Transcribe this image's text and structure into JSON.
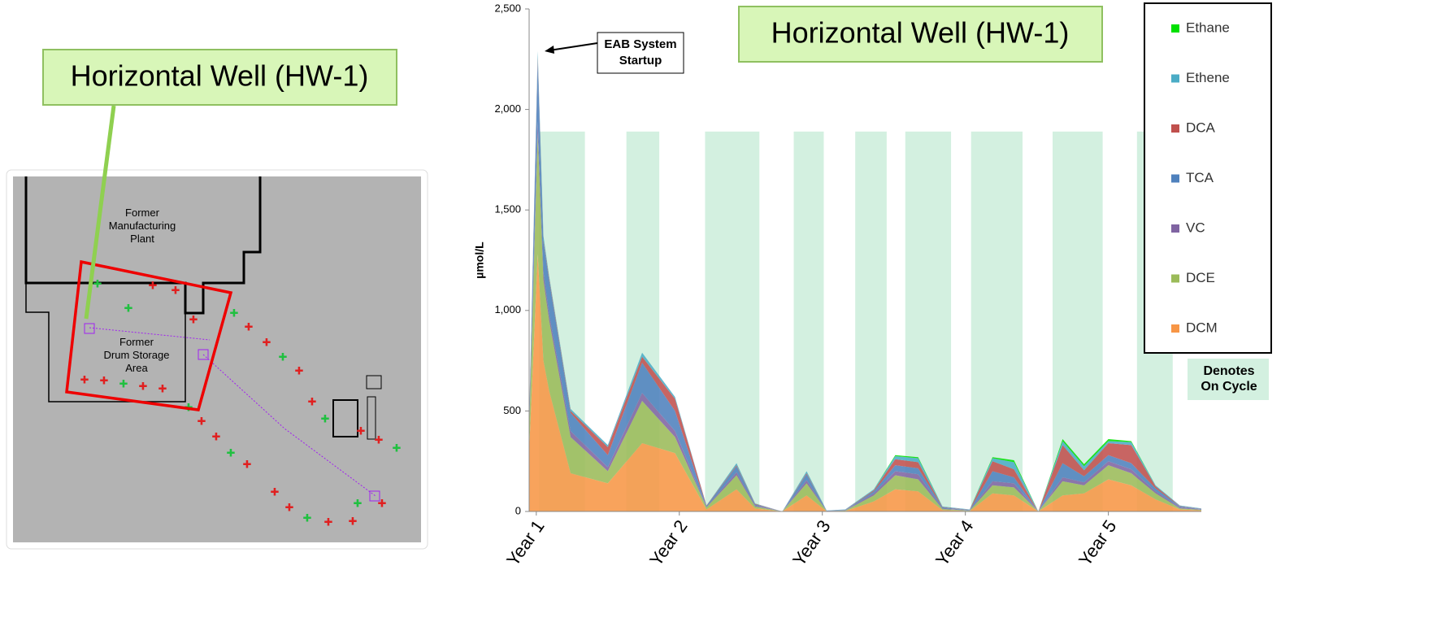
{
  "map": {
    "callout": "Horizontal Well (HW-1)",
    "plant_label": "Former Manufacturing Plant",
    "drum_label": "Former Drum Storage Area"
  },
  "chart_data": {
    "type": "area",
    "stacked": true,
    "title": "Horizontal Well (HW-1)",
    "y_label": "µmol/L",
    "annotation": "EAB System Startup",
    "band_label": "Denotes On Cycle",
    "band_color": "#d3f0e0",
    "on_cycle_bands": [
      [
        1.02,
        1.34
      ],
      [
        1.63,
        1.86
      ],
      [
        2.18,
        2.56
      ],
      [
        2.8,
        3.01
      ],
      [
        3.23,
        3.45
      ],
      [
        3.58,
        3.9
      ],
      [
        4.04,
        4.4
      ],
      [
        4.61,
        4.96
      ],
      [
        5.2,
        5.45
      ]
    ],
    "xlim": [
      0.95,
      5.65
    ],
    "xticks": [
      {
        "value": 1,
        "label": "Year 1"
      },
      {
        "value": 2,
        "label": "Year 2"
      },
      {
        "value": 3,
        "label": "Year 3"
      },
      {
        "value": 4,
        "label": "Year 4"
      },
      {
        "value": 5,
        "label": "Year 5"
      }
    ],
    "ylim": [
      0,
      2500
    ],
    "yticks": [
      0,
      {
        "value": 500,
        "label": "500"
      },
      {
        "value": 1000,
        "label": "1,000"
      },
      {
        "value": 1500,
        "label": "1,500"
      },
      {
        "value": 2000,
        "label": "2,000"
      },
      {
        "value": 2500,
        "label": "2,500"
      }
    ],
    "x": [
      0.95,
      1.01,
      1.05,
      1.09,
      1.24,
      1.5,
      1.74,
      1.97,
      2.19,
      2.4,
      2.53,
      2.72,
      2.89,
      3.03,
      3.16,
      3.36,
      3.51,
      3.67,
      3.84,
      4.03,
      4.19,
      4.34,
      4.51,
      4.68,
      4.83,
      5.0,
      5.16,
      5.33,
      5.5,
      5.65
    ],
    "series": [
      {
        "name": "Ethane",
        "color": "#00e000",
        "values": [
          0,
          0,
          0,
          0,
          0,
          0,
          0,
          0,
          0,
          0,
          0,
          0,
          0,
          0,
          0,
          0,
          5,
          5,
          0,
          0,
          5,
          10,
          0,
          10,
          10,
          10,
          5,
          0,
          0,
          0
        ]
      },
      {
        "name": "Ethene",
        "color": "#4bacc6",
        "values": [
          5,
          30,
          20,
          10,
          10,
          10,
          20,
          10,
          0,
          10,
          2,
          0,
          10,
          1,
          2,
          5,
          15,
          20,
          3,
          2,
          15,
          35,
          0,
          20,
          20,
          10,
          15,
          5,
          3,
          2
        ]
      },
      {
        "name": "DCA",
        "color": "#c0504d",
        "values": [
          10,
          20,
          10,
          10,
          10,
          40,
          30,
          60,
          2,
          5,
          3,
          0,
          5,
          0,
          1,
          5,
          30,
          30,
          2,
          1,
          50,
          40,
          0,
          90,
          30,
          60,
          90,
          10,
          2,
          1
        ]
      },
      {
        "name": "TCA",
        "color": "#4f81bd",
        "values": [
          30,
          300,
          150,
          170,
          90,
          60,
          150,
          100,
          5,
          30,
          5,
          0,
          30,
          1,
          2,
          10,
          30,
          30,
          5,
          2,
          50,
          30,
          0,
          70,
          30,
          30,
          30,
          15,
          5,
          2
        ]
      },
      {
        "name": "VC",
        "color": "#8064a2",
        "values": [
          20,
          60,
          40,
          30,
          30,
          20,
          40,
          30,
          3,
          15,
          5,
          0,
          15,
          1,
          1,
          10,
          20,
          25,
          3,
          1,
          20,
          20,
          0,
          20,
          15,
          20,
          20,
          10,
          5,
          2
        ]
      },
      {
        "name": "DCE",
        "color": "#9bbb59",
        "values": [
          100,
          600,
          400,
          350,
          180,
          60,
          210,
          80,
          10,
          70,
          10,
          0,
          60,
          1,
          2,
          30,
          70,
          60,
          5,
          2,
          40,
          40,
          0,
          70,
          40,
          70,
          60,
          30,
          5,
          3
        ]
      },
      {
        "name": "DCM",
        "color": "#f79646",
        "values": [
          300,
          1280,
          750,
          600,
          190,
          140,
          340,
          290,
          10,
          110,
          15,
          0,
          80,
          1,
          2,
          50,
          110,
          100,
          7,
          2,
          90,
          80,
          0,
          80,
          90,
          160,
          130,
          60,
          10,
          5
        ]
      }
    ]
  }
}
